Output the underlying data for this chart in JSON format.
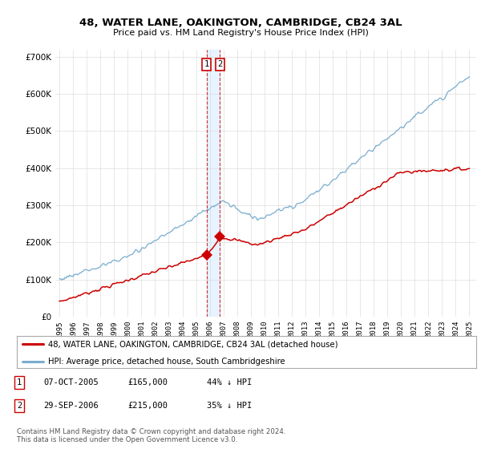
{
  "title": "48, WATER LANE, OAKINGTON, CAMBRIDGE, CB24 3AL",
  "subtitle": "Price paid vs. HM Land Registry's House Price Index (HPI)",
  "ylim": [
    0,
    720000
  ],
  "yticks": [
    0,
    100000,
    200000,
    300000,
    400000,
    500000,
    600000,
    700000
  ],
  "ytick_labels": [
    "£0",
    "£100K",
    "£200K",
    "£300K",
    "£400K",
    "£500K",
    "£600K",
    "£700K"
  ],
  "red_color": "#cc0000",
  "blue_color": "#7aadcf",
  "transaction1": {
    "date": "07-OCT-2005",
    "price": 165000,
    "pct": "44%",
    "dir": "↓",
    "label": "1",
    "year": 2005.77
  },
  "transaction2": {
    "date": "29-SEP-2006",
    "price": 215000,
    "pct": "35%",
    "dir": "↓",
    "label": "2",
    "year": 2006.75
  },
  "legend_label_red": "48, WATER LANE, OAKINGTON, CAMBRIDGE, CB24 3AL (detached house)",
  "legend_label_blue": "HPI: Average price, detached house, South Cambridgeshire",
  "footnote": "Contains HM Land Registry data © Crown copyright and database right 2024.\nThis data is licensed under the Open Government Licence v3.0.",
  "background_color": "#ffffff",
  "grid_color": "#dddddd",
  "shade_color": "#ddeeff"
}
